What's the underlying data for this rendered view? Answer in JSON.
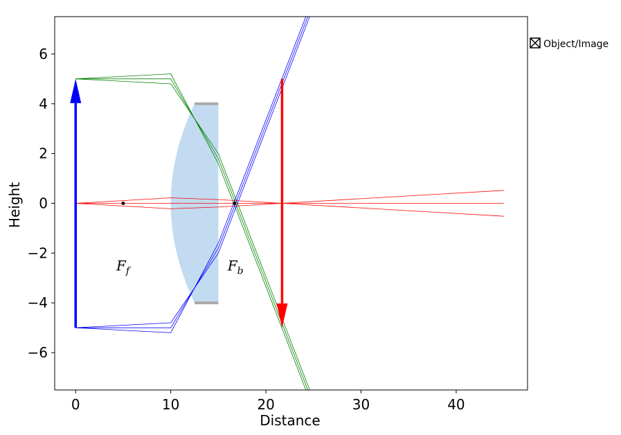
{
  "chart_data": {
    "type": "ray-diagram",
    "xlabel": "Distance",
    "ylabel": "Height",
    "xlim": [
      -2.2,
      47.5
    ],
    "ylim": [
      -7.5,
      7.5
    ],
    "x_ticks": [
      0,
      10,
      20,
      30,
      40
    ],
    "y_ticks": [
      -6,
      -4,
      -2,
      0,
      2,
      4,
      6
    ],
    "x_tick_labels": [
      "0",
      "10",
      "20",
      "30",
      "40"
    ],
    "y_tick_labels": [
      "−6",
      "−4",
      "−2",
      "0",
      "2",
      "4",
      "6"
    ],
    "legend": [
      {
        "label": "Object/Image",
        "marker": "boxed-x"
      }
    ],
    "object": {
      "x": 0,
      "y_base": -5,
      "y_top": 5,
      "color": "#0000ff"
    },
    "image": {
      "x": 21.7,
      "y_base": 5,
      "y_tip": -5,
      "color": "#ff0000"
    },
    "lens": {
      "front_vertex_x": 10,
      "back_x": 15,
      "half_aperture": 4.0,
      "sag_edge_x": 12.5,
      "fill": "#c2dbf0",
      "mount_color": "#aaaaaa"
    },
    "focal_points": [
      {
        "label": "F",
        "sub": "f",
        "x": 5.0,
        "y": 0,
        "label_y": -2.5
      },
      {
        "label": "F",
        "sub": "b",
        "x": 16.7,
        "y": 0,
        "label_y": -2.5
      }
    ],
    "ray_groups": [
      {
        "name": "top",
        "color": "#008000",
        "rays": [
          [
            [
              0,
              5
            ],
            [
              10,
              5.2
            ],
            [
              15,
              1.6
            ],
            [
              24.2,
              -7.5
            ]
          ],
          [
            [
              0,
              5
            ],
            [
              10,
              5.0
            ],
            [
              15,
              1.8
            ],
            [
              24.4,
              -7.5
            ]
          ],
          [
            [
              0,
              5
            ],
            [
              10,
              4.8
            ],
            [
              15,
              2.0
            ],
            [
              24.6,
              -7.5
            ]
          ]
        ]
      },
      {
        "name": "axis",
        "color": "#ff0000",
        "rays": [
          [
            [
              0,
              0
            ],
            [
              10,
              0.22
            ],
            [
              15,
              0.15
            ],
            [
              21.7,
              0
            ],
            [
              45,
              0.52
            ]
          ],
          [
            [
              0,
              0
            ],
            [
              10,
              0
            ],
            [
              15,
              0
            ],
            [
              45,
              0
            ]
          ],
          [
            [
              0,
              0
            ],
            [
              10,
              -0.22
            ],
            [
              15,
              -0.15
            ],
            [
              21.7,
              0
            ],
            [
              45,
              -0.52
            ]
          ]
        ]
      },
      {
        "name": "bottom",
        "color": "#0000ff",
        "rays": [
          [
            [
              0,
              -5
            ],
            [
              10,
              -5.2
            ],
            [
              15,
              -1.6
            ],
            [
              24.2,
              7.5
            ]
          ],
          [
            [
              0,
              -5
            ],
            [
              10,
              -5.0
            ],
            [
              15,
              -1.8
            ],
            [
              24.4,
              7.5
            ]
          ],
          [
            [
              0,
              -5
            ],
            [
              10,
              -4.8
            ],
            [
              15,
              -2.0
            ],
            [
              24.6,
              7.5
            ]
          ]
        ]
      }
    ]
  }
}
